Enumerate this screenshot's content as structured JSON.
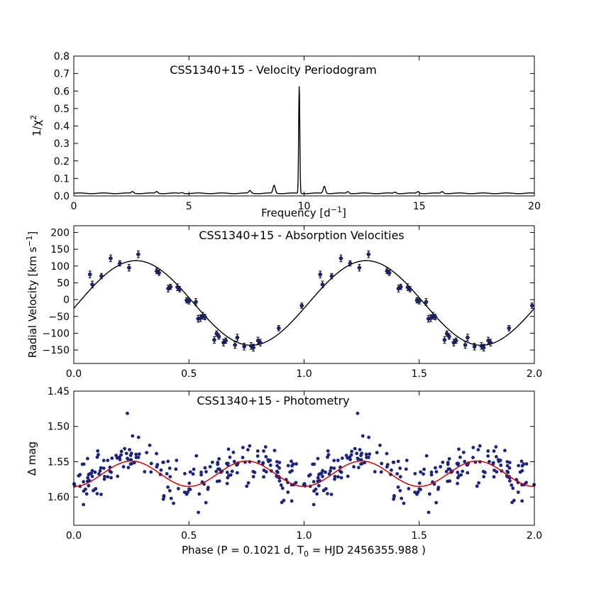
{
  "chart_data": [
    {
      "type": "line",
      "title": "CSS1340+15 - Velocity Periodogram",
      "xlabel": "Frequency [d",
      "xlabel_sup": "−1",
      "xlabel_end": "]",
      "ylabel": "1/χ",
      "ylabel_sup": "2",
      "xlim": [
        0,
        20
      ],
      "ylim": [
        0,
        0.8
      ],
      "xticks": [
        "0",
        "5",
        "10",
        "15",
        "20"
      ],
      "yticks": [
        "0.0",
        "0.1",
        "0.2",
        "0.3",
        "0.4",
        "0.5",
        "0.6",
        "0.7",
        "0.8"
      ],
      "baseline": 0.015,
      "peaks": [
        {
          "x": 2.55,
          "y": 0.025
        },
        {
          "x": 3.6,
          "y": 0.025
        },
        {
          "x": 4.7,
          "y": 0.02
        },
        {
          "x": 7.65,
          "y": 0.03
        },
        {
          "x": 8.7,
          "y": 0.06
        },
        {
          "x": 9.79,
          "y": 0.63
        },
        {
          "x": 10.88,
          "y": 0.055
        },
        {
          "x": 11.9,
          "y": 0.025
        },
        {
          "x": 13.95,
          "y": 0.022
        },
        {
          "x": 14.95,
          "y": 0.025
        },
        {
          "x": 16.0,
          "y": 0.025
        }
      ],
      "series_color": "#000000"
    },
    {
      "type": "scatter",
      "title": "CSS1340+15 - Absorption Velocities",
      "xlabel": "",
      "ylabel": "Radial Velocity [km s",
      "ylabel_sup": "−1",
      "ylabel_end": "]",
      "xlim": [
        0,
        2
      ],
      "ylim": [
        -190,
        220
      ],
      "xticks": [
        "0.0",
        "0.5",
        "1.0",
        "1.5",
        "2.0"
      ],
      "yticks": [
        "−150",
        "−100",
        "−50",
        "0",
        "50",
        "100",
        "150",
        "200"
      ],
      "fit": {
        "gamma": -10,
        "K": 126,
        "phase_zero": 0.02,
        "color": "#000000"
      },
      "points_color": "#1a237e",
      "points": [
        {
          "x": 0.07,
          "y": 75,
          "err": 10
        },
        {
          "x": 0.08,
          "y": 45,
          "err": 10
        },
        {
          "x": 0.12,
          "y": 70,
          "err": 8
        },
        {
          "x": 0.16,
          "y": 123,
          "err": 10
        },
        {
          "x": 0.2,
          "y": 108,
          "err": 8
        },
        {
          "x": 0.24,
          "y": 95,
          "err": 10
        },
        {
          "x": 0.28,
          "y": 135,
          "err": 10
        },
        {
          "x": 0.36,
          "y": 85,
          "err": 8
        },
        {
          "x": 0.37,
          "y": 80,
          "err": 8
        },
        {
          "x": 0.41,
          "y": 33,
          "err": 10
        },
        {
          "x": 0.42,
          "y": 38,
          "err": 8
        },
        {
          "x": 0.45,
          "y": 37,
          "err": 10
        },
        {
          "x": 0.46,
          "y": 31,
          "err": 8
        },
        {
          "x": 0.49,
          "y": -2,
          "err": 8
        },
        {
          "x": 0.5,
          "y": -5,
          "err": 8
        },
        {
          "x": 0.53,
          "y": -7,
          "err": 10
        },
        {
          "x": 0.54,
          "y": -57,
          "err": 10
        },
        {
          "x": 0.55,
          "y": -55,
          "err": 10
        },
        {
          "x": 0.56,
          "y": -48,
          "err": 10
        },
        {
          "x": 0.57,
          "y": -52,
          "err": 8
        },
        {
          "x": 0.61,
          "y": -120,
          "err": 10
        },
        {
          "x": 0.62,
          "y": -101,
          "err": 8
        },
        {
          "x": 0.63,
          "y": -110,
          "err": 8
        },
        {
          "x": 0.65,
          "y": -128,
          "err": 10
        },
        {
          "x": 0.66,
          "y": -122,
          "err": 8
        },
        {
          "x": 0.7,
          "y": -135,
          "err": 10
        },
        {
          "x": 0.71,
          "y": -113,
          "err": 10
        },
        {
          "x": 0.74,
          "y": -140,
          "err": 10
        },
        {
          "x": 0.77,
          "y": -138,
          "err": 10
        },
        {
          "x": 0.78,
          "y": -143,
          "err": 10
        },
        {
          "x": 0.8,
          "y": -122,
          "err": 10
        },
        {
          "x": 0.81,
          "y": -128,
          "err": 10
        },
        {
          "x": 0.89,
          "y": -85,
          "err": 8
        },
        {
          "x": 0.99,
          "y": -18,
          "err": 8
        }
      ]
    },
    {
      "type": "scatter",
      "title": "CSS1340+15 - Photometry",
      "xlabel": "Phase (P =  0.1021 d,  T",
      "xlabel_sub": "0",
      "xlabel_end": " = HJD 2456355.988 )",
      "ylabel": "Δ mag",
      "xlim": [
        0,
        2
      ],
      "ylim": [
        1.64,
        1.45
      ],
      "xticks": [
        "0.0",
        "0.5",
        "1.0",
        "1.5",
        "2.0"
      ],
      "yticks": [
        "1.45",
        "1.50",
        "1.55",
        "1.60"
      ],
      "fit": {
        "mean": 1.567,
        "amplitude": 0.018,
        "period_in_phase": 0.5,
        "min_phase": 0.25,
        "color": "#d40000"
      },
      "points_color": "#1a237e",
      "scatter_sigma": 0.016,
      "n_points_per_cycle": 210
    }
  ]
}
